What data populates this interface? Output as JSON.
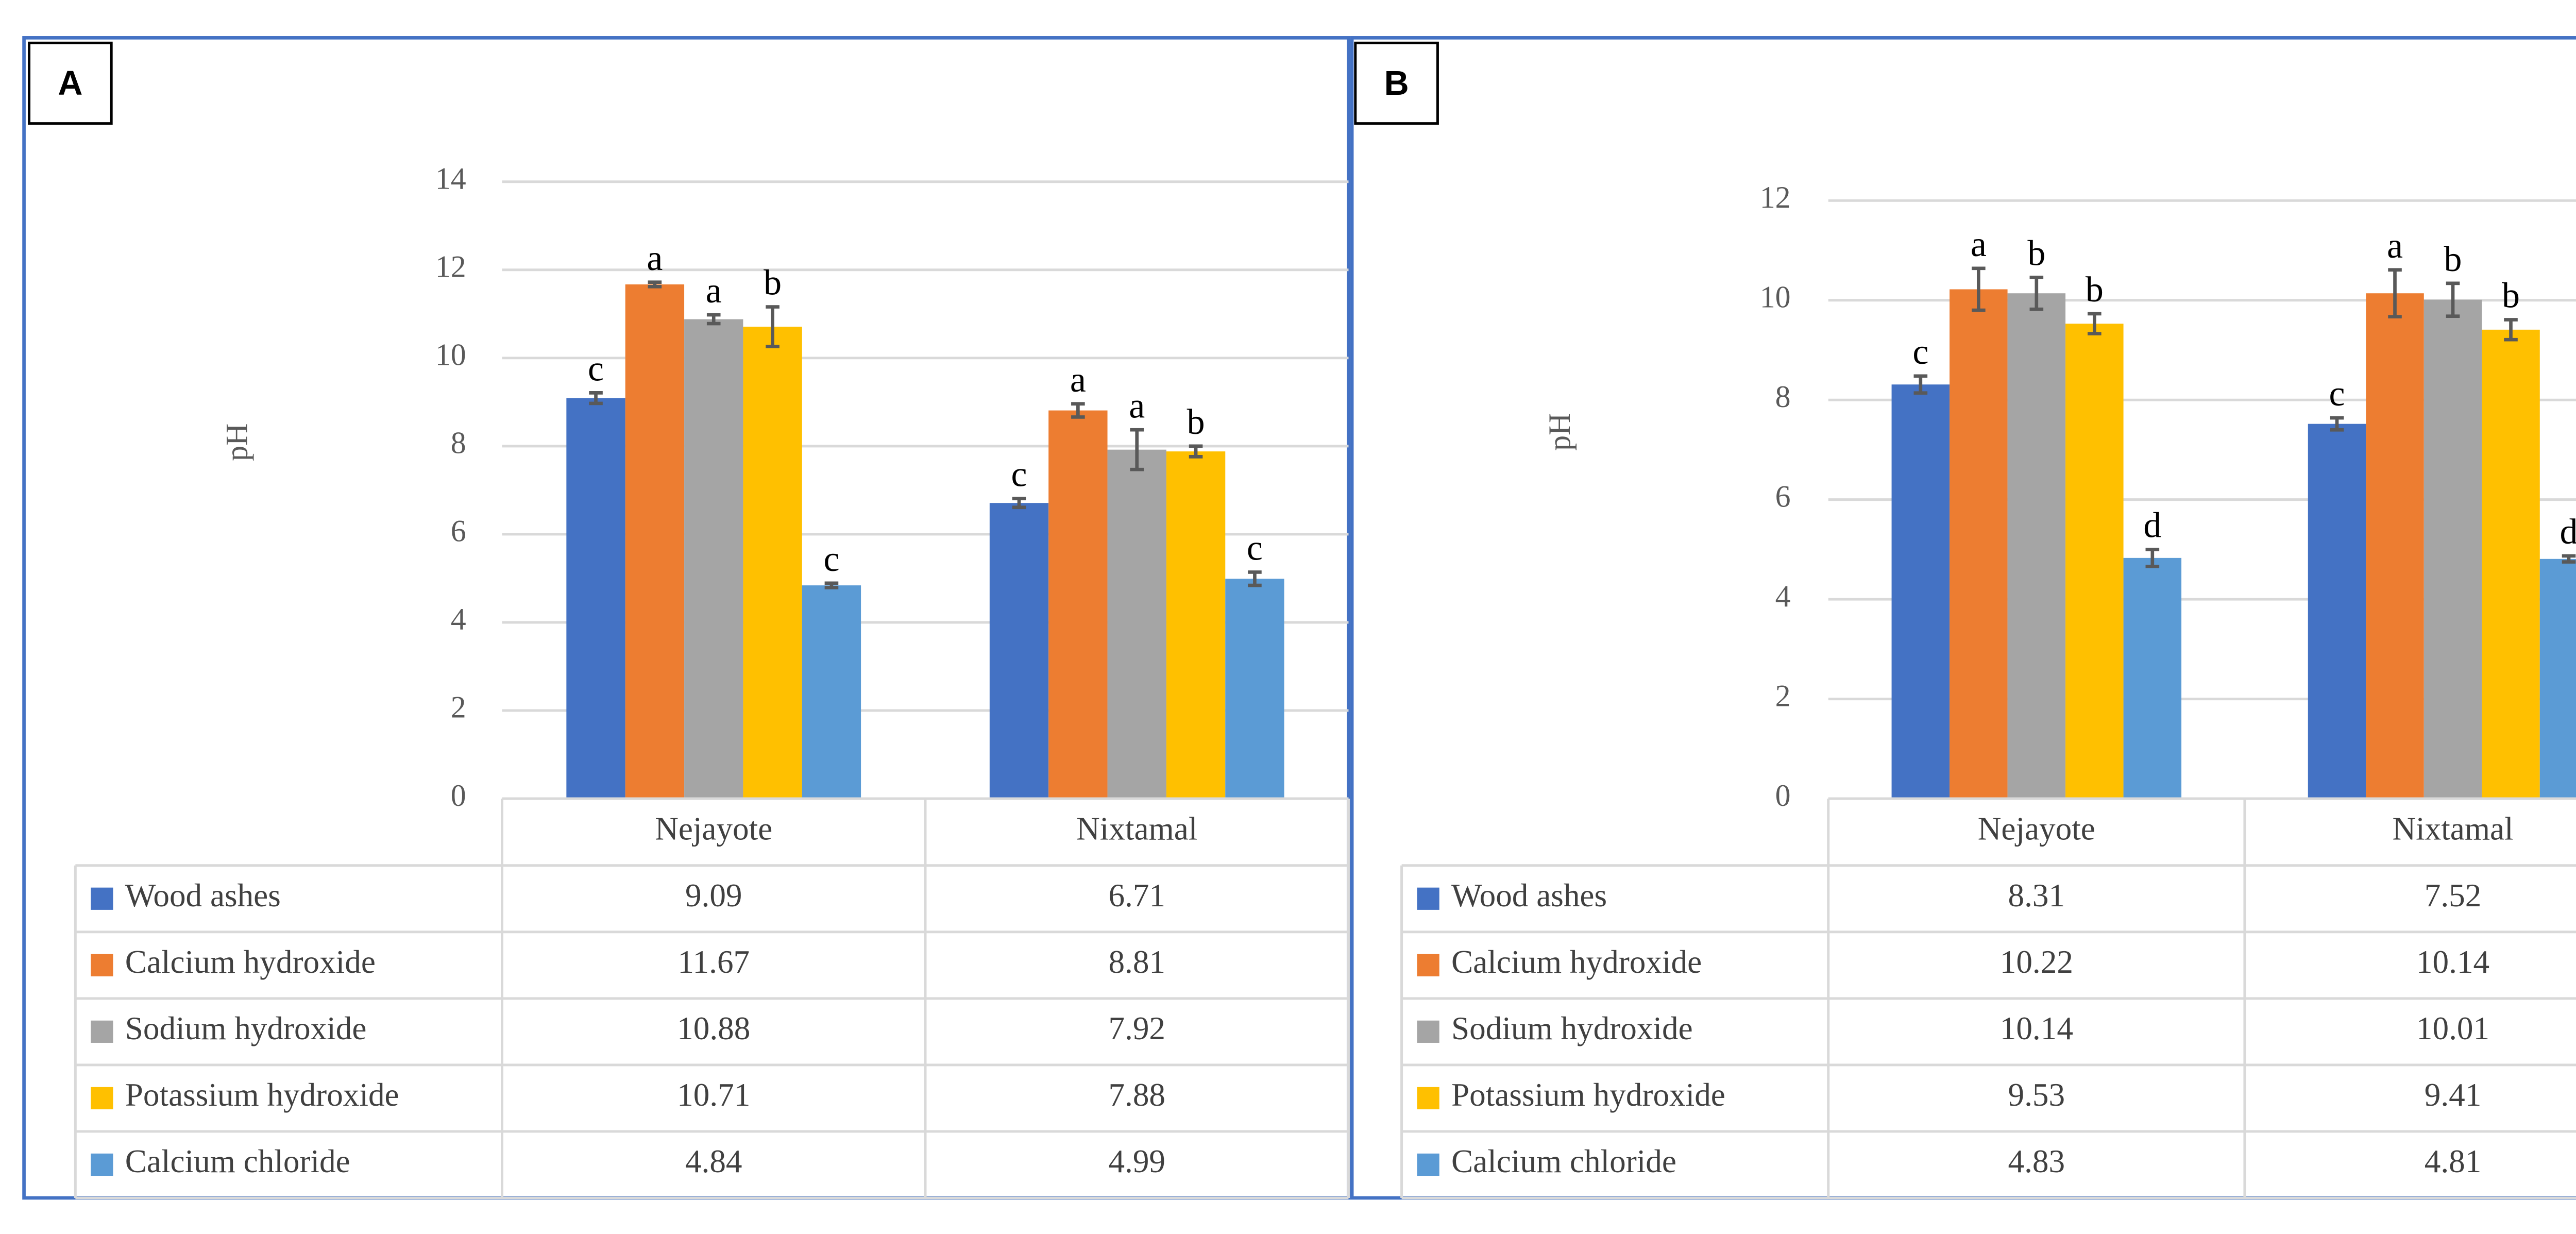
{
  "chart_data": [
    {
      "type": "bar",
      "panel": "A",
      "y_label": "pH",
      "categories": [
        "Nejayote",
        "Nixtamal"
      ],
      "series": [
        {
          "name": "Wood ashes",
          "color": "#4472c4",
          "values": [
            9.09,
            6.71
          ],
          "errors": [
            0.12,
            0.1
          ],
          "annotations": [
            "c",
            "c"
          ]
        },
        {
          "name": "Calcium hydroxide",
          "color": "#ed7d31",
          "values": [
            11.67,
            8.81
          ],
          "errors": [
            0.05,
            0.15
          ],
          "annotations": [
            "a",
            "a"
          ]
        },
        {
          "name": "Sodium hydroxide",
          "color": "#a5a5a5",
          "values": [
            10.88,
            7.92
          ],
          "errors": [
            0.1,
            0.45
          ],
          "annotations": [
            "a",
            "a"
          ]
        },
        {
          "name": "Potassium hydroxide",
          "color": "#ffc000",
          "values": [
            10.71,
            7.88
          ],
          "errors": [
            0.45,
            0.12
          ],
          "annotations": [
            "b",
            "b"
          ]
        },
        {
          "name": "Calcium chloride",
          "color": "#5b9bd5",
          "values": [
            4.84,
            4.99
          ],
          "errors": [
            0.05,
            0.15
          ],
          "annotations": [
            "c",
            "c"
          ]
        }
      ],
      "ylim": [
        0,
        14
      ],
      "yticks": [
        0,
        2,
        4,
        6,
        8,
        10,
        12,
        14
      ],
      "grid": true
    },
    {
      "type": "bar",
      "panel": "B",
      "y_label": "pH",
      "categories": [
        "Nejayote",
        "Nixtamal"
      ],
      "series": [
        {
          "name": "Wood ashes",
          "color": "#4472c4",
          "values": [
            8.31,
            7.52
          ],
          "errors": [
            0.17,
            0.12
          ],
          "annotations": [
            "c",
            "c"
          ]
        },
        {
          "name": "Calcium hydroxide",
          "color": "#ed7d31",
          "values": [
            10.22,
            10.14
          ],
          "errors": [
            0.42,
            0.47
          ],
          "annotations": [
            "a",
            "a"
          ]
        },
        {
          "name": "Sodium hydroxide",
          "color": "#a5a5a5",
          "values": [
            10.14,
            10.01
          ],
          "errors": [
            0.32,
            0.33
          ],
          "annotations": [
            "b",
            "b"
          ]
        },
        {
          "name": "Potassium hydroxide",
          "color": "#ffc000",
          "values": [
            9.53,
            9.41
          ],
          "errors": [
            0.2,
            0.2
          ],
          "annotations": [
            "b",
            "b"
          ]
        },
        {
          "name": "Calcium chloride",
          "color": "#5b9bd5",
          "values": [
            4.83,
            4.81
          ],
          "errors": [
            0.17,
            0.06
          ],
          "annotations": [
            "d",
            "d"
          ]
        }
      ],
      "ylim": [
        0,
        12
      ],
      "yticks": [
        0,
        2,
        4,
        6,
        8,
        10,
        12
      ],
      "grid": true
    }
  ]
}
